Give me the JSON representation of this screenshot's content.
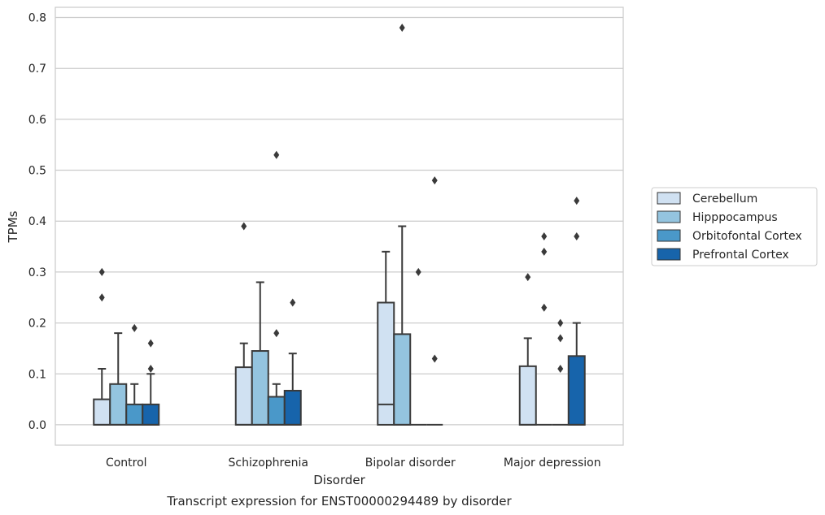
{
  "chart_data": {
    "type": "box",
    "caption": "Transcript expression for ENST00000294489 by disorder",
    "xlabel": "Disorder",
    "ylabel": "TPMs",
    "ylim": [
      -0.04,
      0.82
    ],
    "yticks": [
      0.0,
      0.1,
      0.2,
      0.3,
      0.4,
      0.5,
      0.6,
      0.7,
      0.8
    ],
    "ytick_labels": [
      "0.0",
      "0.1",
      "0.2",
      "0.3",
      "0.4",
      "0.5",
      "0.6",
      "0.7",
      "0.8"
    ],
    "grid": "horizontal",
    "legend_position": "right",
    "categories": [
      "Control",
      "Schizophrenia",
      "Bipolar disorder",
      "Major depression"
    ],
    "series": [
      {
        "name": "Cerebellum",
        "color": "#d0e1f2",
        "boxes": [
          {
            "whisker_low": 0.0,
            "q1": 0.0,
            "median": 0.0,
            "q3": 0.05,
            "whisker_high": 0.11,
            "outliers": [
              0.25,
              0.3
            ]
          },
          {
            "whisker_low": 0.0,
            "q1": 0.0,
            "median": 0.0,
            "q3": 0.113,
            "whisker_high": 0.16,
            "outliers": [
              0.39
            ]
          },
          {
            "whisker_low": 0.0,
            "q1": 0.0,
            "median": 0.04,
            "q3": 0.24,
            "whisker_high": 0.34,
            "outliers": []
          },
          {
            "whisker_low": 0.0,
            "q1": 0.0,
            "median": 0.0,
            "q3": 0.115,
            "whisker_high": 0.17,
            "outliers": [
              0.29
            ]
          }
        ]
      },
      {
        "name": "Hipppocampus",
        "color": "#94c4df",
        "boxes": [
          {
            "whisker_low": 0.0,
            "q1": 0.0,
            "median": 0.0,
            "q3": 0.08,
            "whisker_high": 0.18,
            "outliers": []
          },
          {
            "whisker_low": 0.0,
            "q1": 0.0,
            "median": 0.0,
            "q3": 0.145,
            "whisker_high": 0.28,
            "outliers": []
          },
          {
            "whisker_low": 0.0,
            "q1": 0.0,
            "median": 0.0,
            "q3": 0.178,
            "whisker_high": 0.39,
            "outliers": [
              0.78
            ]
          },
          {
            "whisker_low": 0.0,
            "q1": 0.0,
            "median": 0.0,
            "q3": 0.0,
            "whisker_high": 0.0,
            "outliers": [
              0.23,
              0.34,
              0.37
            ]
          }
        ]
      },
      {
        "name": "Orbitofontal Cortex",
        "color": "#4a98c9",
        "boxes": [
          {
            "whisker_low": 0.0,
            "q1": 0.0,
            "median": 0.0,
            "q3": 0.04,
            "whisker_high": 0.08,
            "outliers": [
              0.19
            ]
          },
          {
            "whisker_low": 0.0,
            "q1": 0.0,
            "median": 0.0,
            "q3": 0.055,
            "whisker_high": 0.08,
            "outliers": [
              0.18,
              0.53
            ]
          },
          {
            "whisker_low": 0.0,
            "q1": 0.0,
            "median": 0.0,
            "q3": 0.0,
            "whisker_high": 0.0,
            "outliers": [
              0.3
            ]
          },
          {
            "whisker_low": 0.0,
            "q1": 0.0,
            "median": 0.0,
            "q3": 0.0,
            "whisker_high": 0.0,
            "outliers": [
              0.11,
              0.17,
              0.2
            ]
          }
        ]
      },
      {
        "name": "Prefrontal Cortex",
        "color": "#1764ab",
        "boxes": [
          {
            "whisker_low": 0.0,
            "q1": 0.0,
            "median": 0.0,
            "q3": 0.04,
            "whisker_high": 0.1,
            "outliers": [
              0.11,
              0.16
            ]
          },
          {
            "whisker_low": 0.0,
            "q1": 0.0,
            "median": 0.0,
            "q3": 0.067,
            "whisker_high": 0.14,
            "outliers": [
              0.24
            ]
          },
          {
            "whisker_low": 0.0,
            "q1": 0.0,
            "median": 0.0,
            "q3": 0.0,
            "whisker_high": 0.0,
            "outliers": [
              0.13,
              0.48
            ]
          },
          {
            "whisker_low": 0.0,
            "q1": 0.0,
            "median": 0.0,
            "q3": 0.135,
            "whisker_high": 0.2,
            "outliers": [
              0.37,
              0.44
            ]
          }
        ]
      }
    ]
  }
}
